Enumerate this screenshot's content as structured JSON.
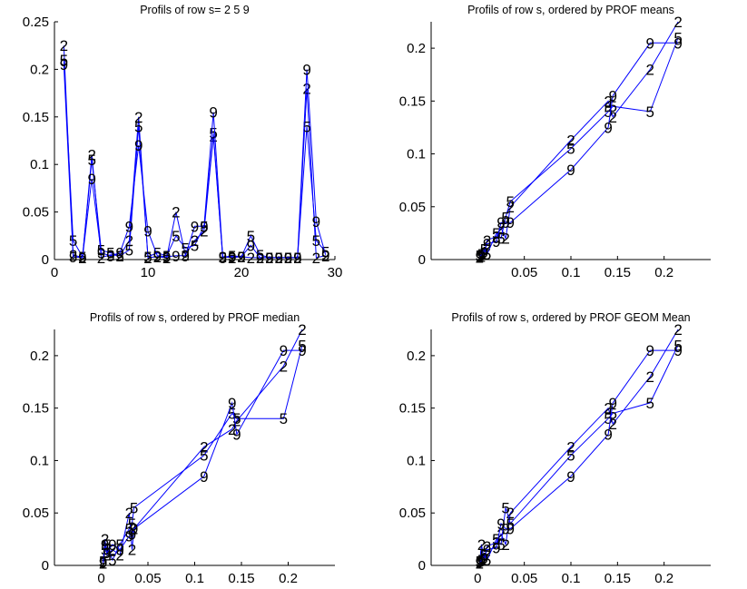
{
  "colors": {
    "line": "#0000ff",
    "text": "#000000",
    "background": "#ffffff"
  },
  "chart_data": [
    {
      "type": "line",
      "title": "Profils of row s= 2 5 9",
      "xlabel": "",
      "ylabel": "",
      "xlim": [
        0,
        30
      ],
      "ylim": [
        0,
        0.25
      ],
      "xticks": [
        0,
        10,
        20,
        30
      ],
      "xtick_labels": [
        "0",
        "10",
        "20",
        "30"
      ],
      "yticks": [
        0,
        0.05,
        0.1,
        0.15,
        0.2,
        0.25
      ],
      "ytick_labels": [
        "0",
        "0.05",
        "0.1",
        "0.15",
        "0.2",
        "0.25"
      ],
      "grid": false,
      "marker_labels": true,
      "series": [
        {
          "label": "2",
          "x": [
            1,
            2,
            3,
            4,
            5,
            6,
            7,
            8,
            9,
            10,
            11,
            12,
            13,
            14,
            15,
            16,
            17,
            18,
            19,
            20,
            21,
            22,
            23,
            24,
            25,
            26,
            27,
            28,
            29
          ],
          "y": [
            0.225,
            0.005,
            0.002,
            0.11,
            0.002,
            0.005,
            0.004,
            0.02,
            0.15,
            0.002,
            0.003,
            0.002,
            0.05,
            0.005,
            0.02,
            0.03,
            0.13,
            0.003,
            0.002,
            0.003,
            0.002,
            0.002,
            0.002,
            0.002,
            0.002,
            0.002,
            0.18,
            0.002,
            0.004
          ]
        },
        {
          "label": "5",
          "x": [
            1,
            2,
            3,
            4,
            5,
            6,
            7,
            8,
            9,
            10,
            11,
            12,
            13,
            14,
            15,
            16,
            17,
            18,
            19,
            20,
            21,
            22,
            23,
            24,
            25,
            26,
            27,
            28,
            29
          ],
          "y": [
            0.21,
            0.02,
            0.003,
            0.105,
            0.01,
            0.007,
            0.004,
            0.01,
            0.14,
            0.003,
            0.007,
            0.004,
            0.025,
            0.012,
            0.015,
            0.035,
            0.133,
            0.002,
            0.004,
            0.003,
            0.025,
            0.005,
            0.002,
            0.002,
            0.002,
            0.002,
            0.14,
            0.02,
            0.008
          ]
        },
        {
          "label": "9",
          "x": [
            1,
            2,
            3,
            4,
            5,
            6,
            7,
            8,
            9,
            10,
            11,
            12,
            13,
            14,
            15,
            16,
            17,
            18,
            19,
            20,
            21,
            22,
            23,
            24,
            25,
            26,
            27,
            28,
            29
          ],
          "y": [
            0.205,
            0.003,
            0.002,
            0.085,
            0.007,
            0.004,
            0.007,
            0.035,
            0.12,
            0.03,
            0.004,
            0.003,
            0.004,
            0.004,
            0.035,
            0.035,
            0.155,
            0.003,
            0.003,
            0.003,
            0.015,
            0.002,
            0.002,
            0.002,
            0.002,
            0.002,
            0.2,
            0.04,
            0.005
          ]
        }
      ]
    },
    {
      "type": "line",
      "title": "Profils of row s, ordered by PROF means",
      "xlabel": "",
      "ylabel": "",
      "xlim": [
        -0.05,
        0.25
      ],
      "ylim": [
        0,
        0.225
      ],
      "xticks": [
        0.05,
        0.1,
        0.15,
        0.2
      ],
      "xtick_labels": [
        "0.05",
        "0.1",
        "0.15",
        "0.2"
      ],
      "yticks": [
        0,
        0.05,
        0.1,
        0.15,
        0.2
      ],
      "ytick_labels": [
        "0",
        "0.05",
        "0.1",
        "0.15",
        "0.2"
      ],
      "grid": false,
      "marker_labels": true,
      "series": [
        {
          "label": "2",
          "x": [
            0.002,
            0.004,
            0.007,
            0.01,
            0.02,
            0.025,
            0.03,
            0.035,
            0.1,
            0.14,
            0.145,
            0.185,
            0.215
          ],
          "y": [
            0.002,
            0.003,
            0.005,
            0.018,
            0.022,
            0.03,
            0.02,
            0.05,
            0.113,
            0.15,
            0.135,
            0.18,
            0.225
          ]
        },
        {
          "label": "5",
          "x": [
            0.002,
            0.004,
            0.007,
            0.01,
            0.02,
            0.025,
            0.03,
            0.035,
            0.1,
            0.14,
            0.145,
            0.185,
            0.215
          ],
          "y": [
            0.004,
            0.005,
            0.01,
            0.005,
            0.025,
            0.02,
            0.04,
            0.055,
            0.105,
            0.14,
            0.145,
            0.14,
            0.21
          ]
        },
        {
          "label": "9",
          "x": [
            0.002,
            0.004,
            0.007,
            0.01,
            0.02,
            0.025,
            0.03,
            0.035,
            0.1,
            0.14,
            0.145,
            0.185,
            0.215
          ],
          "y": [
            0.003,
            0.004,
            0.007,
            0.015,
            0.017,
            0.035,
            0.035,
            0.035,
            0.085,
            0.125,
            0.155,
            0.205,
            0.205
          ]
        }
      ]
    },
    {
      "type": "line",
      "title": "Profils of row s, ordered by PROF median",
      "xlabel": "",
      "ylabel": "",
      "xlim": [
        -0.05,
        0.25
      ],
      "ylim": [
        0,
        0.225
      ],
      "xticks": [
        0,
        0.05,
        0.1,
        0.15,
        0.2
      ],
      "xtick_labels": [
        "0",
        "0.05",
        "0.1",
        "0.15",
        "0.2"
      ],
      "yticks": [
        0,
        0.05,
        0.1,
        0.15,
        0.2
      ],
      "ytick_labels": [
        "0",
        "0.05",
        "0.1",
        "0.15",
        "0.2"
      ],
      "grid": false,
      "marker_labels": true,
      "series": [
        {
          "label": "2",
          "x": [
            0.002,
            0.004,
            0.006,
            0.012,
            0.02,
            0.03,
            0.033,
            0.035,
            0.11,
            0.14,
            0.145,
            0.195,
            0.215
          ],
          "y": [
            0.002,
            0.025,
            0.01,
            0.015,
            0.01,
            0.05,
            0.015,
            0.035,
            0.113,
            0.13,
            0.138,
            0.19,
            0.225
          ]
        },
        {
          "label": "5",
          "x": [
            0.002,
            0.004,
            0.006,
            0.012,
            0.02,
            0.03,
            0.033,
            0.035,
            0.11,
            0.14,
            0.145,
            0.195,
            0.215
          ],
          "y": [
            0.004,
            0.015,
            0.02,
            0.005,
            0.02,
            0.035,
            0.04,
            0.055,
            0.105,
            0.145,
            0.14,
            0.14,
            0.21
          ]
        },
        {
          "label": "9",
          "x": [
            0.002,
            0.004,
            0.006,
            0.012,
            0.02,
            0.03,
            0.033,
            0.035,
            0.11,
            0.14,
            0.145,
            0.195,
            0.215
          ],
          "y": [
            0.003,
            0.02,
            0.012,
            0.02,
            0.015,
            0.028,
            0.03,
            0.035,
            0.085,
            0.155,
            0.125,
            0.205,
            0.205
          ]
        }
      ]
    },
    {
      "type": "line",
      "title": "Profils of row s, ordered by PROF GEOM Mean",
      "xlabel": "",
      "ylabel": "",
      "xlim": [
        -0.05,
        0.25
      ],
      "ylim": [
        0,
        0.225
      ],
      "xticks": [
        0,
        0.05,
        0.1,
        0.15,
        0.2
      ],
      "xtick_labels": [
        "0",
        "0.05",
        "0.1",
        "0.15",
        "0.2"
      ],
      "yticks": [
        0,
        0.05,
        0.1,
        0.15,
        0.2
      ],
      "ytick_labels": [
        "0",
        "0.05",
        "0.1",
        "0.15",
        "0.2"
      ],
      "grid": false,
      "marker_labels": true,
      "series": [
        {
          "label": "2",
          "x": [
            0.002,
            0.004,
            0.007,
            0.01,
            0.02,
            0.025,
            0.03,
            0.035,
            0.1,
            0.14,
            0.145,
            0.185,
            0.215
          ],
          "y": [
            0.002,
            0.02,
            0.005,
            0.018,
            0.022,
            0.03,
            0.02,
            0.05,
            0.113,
            0.15,
            0.135,
            0.18,
            0.225
          ]
        },
        {
          "label": "5",
          "x": [
            0.002,
            0.004,
            0.007,
            0.01,
            0.02,
            0.025,
            0.03,
            0.035,
            0.1,
            0.14,
            0.145,
            0.185,
            0.215
          ],
          "y": [
            0.004,
            0.005,
            0.01,
            0.005,
            0.025,
            0.02,
            0.055,
            0.04,
            0.105,
            0.14,
            0.145,
            0.155,
            0.21
          ]
        },
        {
          "label": "9",
          "x": [
            0.002,
            0.004,
            0.007,
            0.01,
            0.02,
            0.025,
            0.03,
            0.035,
            0.1,
            0.14,
            0.145,
            0.185,
            0.215
          ],
          "y": [
            0.003,
            0.004,
            0.007,
            0.015,
            0.017,
            0.04,
            0.035,
            0.035,
            0.085,
            0.125,
            0.155,
            0.205,
            0.205
          ]
        }
      ]
    }
  ]
}
